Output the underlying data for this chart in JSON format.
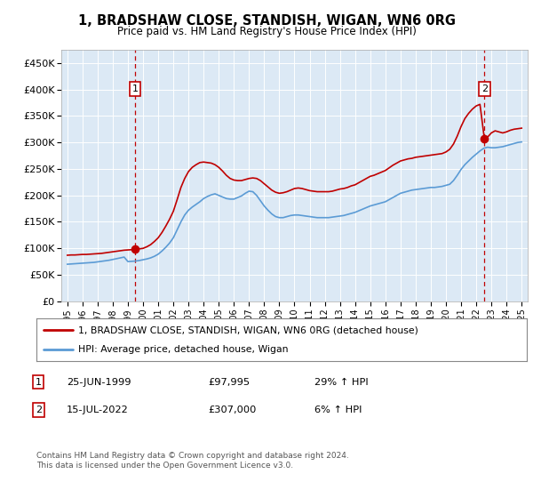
{
  "title": "1, BRADSHAW CLOSE, STANDISH, WIGAN, WN6 0RG",
  "subtitle": "Price paid vs. HM Land Registry's House Price Index (HPI)",
  "ylabel_ticks": [
    "£0",
    "£50K",
    "£100K",
    "£150K",
    "£200K",
    "£250K",
    "£300K",
    "£350K",
    "£400K",
    "£450K"
  ],
  "ylim": [
    0,
    475000
  ],
  "ytick_vals": [
    0,
    50000,
    100000,
    150000,
    200000,
    250000,
    300000,
    350000,
    400000,
    450000
  ],
  "sale1_date": 1999.48,
  "sale1_price": 97995,
  "sale2_date": 2022.54,
  "sale2_price": 307000,
  "legend_line1": "1, BRADSHAW CLOSE, STANDISH, WIGAN, WN6 0RG (detached house)",
  "legend_line2": "HPI: Average price, detached house, Wigan",
  "footnote": "Contains HM Land Registry data © Crown copyright and database right 2024.\nThis data is licensed under the Open Government Licence v3.0.",
  "bg_color": "#dce9f5",
  "line_color_hpi": "#5b9bd5",
  "line_color_price": "#c00000",
  "dashed_color": "#c00000",
  "grid_color": "#ffffff",
  "xmin": 1994.6,
  "xmax": 2025.4,
  "hpi_data": [
    [
      1995.0,
      70000
    ],
    [
      1995.25,
      70500
    ],
    [
      1995.5,
      71000
    ],
    [
      1995.75,
      71500
    ],
    [
      1996.0,
      72000
    ],
    [
      1996.25,
      72500
    ],
    [
      1996.5,
      73000
    ],
    [
      1996.75,
      73500
    ],
    [
      1997.0,
      74500
    ],
    [
      1997.25,
      75500
    ],
    [
      1997.5,
      76500
    ],
    [
      1997.75,
      77500
    ],
    [
      1998.0,
      79000
    ],
    [
      1998.25,
      80500
    ],
    [
      1998.5,
      82000
    ],
    [
      1998.75,
      83500
    ],
    [
      1999.0,
      75000
    ],
    [
      1999.25,
      75500
    ],
    [
      1999.5,
      76000
    ],
    [
      1999.75,
      77000
    ],
    [
      2000.0,
      78500
    ],
    [
      2000.25,
      80000
    ],
    [
      2000.5,
      82000
    ],
    [
      2000.75,
      85000
    ],
    [
      2001.0,
      89000
    ],
    [
      2001.25,
      95000
    ],
    [
      2001.5,
      102000
    ],
    [
      2001.75,
      110000
    ],
    [
      2002.0,
      120000
    ],
    [
      2002.25,
      135000
    ],
    [
      2002.5,
      150000
    ],
    [
      2002.75,
      163000
    ],
    [
      2003.0,
      172000
    ],
    [
      2003.25,
      178000
    ],
    [
      2003.5,
      183000
    ],
    [
      2003.75,
      188000
    ],
    [
      2004.0,
      194000
    ],
    [
      2004.25,
      198000
    ],
    [
      2004.5,
      201000
    ],
    [
      2004.75,
      203000
    ],
    [
      2005.0,
      200000
    ],
    [
      2005.25,
      197000
    ],
    [
      2005.5,
      194000
    ],
    [
      2005.75,
      193000
    ],
    [
      2006.0,
      193000
    ],
    [
      2006.25,
      196000
    ],
    [
      2006.5,
      199000
    ],
    [
      2006.75,
      204000
    ],
    [
      2007.0,
      208000
    ],
    [
      2007.25,
      207000
    ],
    [
      2007.5,
      200000
    ],
    [
      2007.75,
      190000
    ],
    [
      2008.0,
      180000
    ],
    [
      2008.25,
      172000
    ],
    [
      2008.5,
      165000
    ],
    [
      2008.75,
      160000
    ],
    [
      2009.0,
      158000
    ],
    [
      2009.25,
      158000
    ],
    [
      2009.5,
      160000
    ],
    [
      2009.75,
      162000
    ],
    [
      2010.0,
      163000
    ],
    [
      2010.25,
      163000
    ],
    [
      2010.5,
      162000
    ],
    [
      2010.75,
      161000
    ],
    [
      2011.0,
      160000
    ],
    [
      2011.25,
      159000
    ],
    [
      2011.5,
      158000
    ],
    [
      2011.75,
      158000
    ],
    [
      2012.0,
      158000
    ],
    [
      2012.25,
      158000
    ],
    [
      2012.5,
      159000
    ],
    [
      2012.75,
      160000
    ],
    [
      2013.0,
      161000
    ],
    [
      2013.25,
      162000
    ],
    [
      2013.5,
      164000
    ],
    [
      2013.75,
      166000
    ],
    [
      2014.0,
      168000
    ],
    [
      2014.25,
      171000
    ],
    [
      2014.5,
      174000
    ],
    [
      2014.75,
      177000
    ],
    [
      2015.0,
      180000
    ],
    [
      2015.25,
      182000
    ],
    [
      2015.5,
      184000
    ],
    [
      2015.75,
      186000
    ],
    [
      2016.0,
      188000
    ],
    [
      2016.25,
      192000
    ],
    [
      2016.5,
      196000
    ],
    [
      2016.75,
      200000
    ],
    [
      2017.0,
      204000
    ],
    [
      2017.25,
      206000
    ],
    [
      2017.5,
      208000
    ],
    [
      2017.75,
      210000
    ],
    [
      2018.0,
      211000
    ],
    [
      2018.25,
      212000
    ],
    [
      2018.5,
      213000
    ],
    [
      2018.75,
      214000
    ],
    [
      2019.0,
      215000
    ],
    [
      2019.25,
      215000
    ],
    [
      2019.5,
      216000
    ],
    [
      2019.75,
      217000
    ],
    [
      2020.0,
      219000
    ],
    [
      2020.25,
      221000
    ],
    [
      2020.5,
      228000
    ],
    [
      2020.75,
      238000
    ],
    [
      2021.0,
      249000
    ],
    [
      2021.25,
      258000
    ],
    [
      2021.5,
      265000
    ],
    [
      2021.75,
      272000
    ],
    [
      2022.0,
      278000
    ],
    [
      2022.25,
      284000
    ],
    [
      2022.5,
      289000
    ],
    [
      2022.75,
      291000
    ],
    [
      2023.0,
      290000
    ],
    [
      2023.25,
      290000
    ],
    [
      2023.5,
      291000
    ],
    [
      2023.75,
      292000
    ],
    [
      2024.0,
      294000
    ],
    [
      2024.25,
      296000
    ],
    [
      2024.5,
      298000
    ],
    [
      2024.75,
      300000
    ],
    [
      2025.0,
      301000
    ]
  ],
  "price_data": [
    [
      1995.0,
      87000
    ],
    [
      1995.25,
      87500
    ],
    [
      1995.5,
      87500
    ],
    [
      1995.75,
      88000
    ],
    [
      1996.0,
      88500
    ],
    [
      1996.25,
      88500
    ],
    [
      1996.5,
      89000
    ],
    [
      1996.75,
      89500
    ],
    [
      1997.0,
      90000
    ],
    [
      1997.25,
      90500
    ],
    [
      1997.5,
      91500
    ],
    [
      1997.75,
      92500
    ],
    [
      1998.0,
      93500
    ],
    [
      1998.25,
      94500
    ],
    [
      1998.5,
      95500
    ],
    [
      1998.75,
      96500
    ],
    [
      1999.0,
      97000
    ],
    [
      1999.48,
      97995
    ],
    [
      1999.6,
      98500
    ],
    [
      2000.0,
      100000
    ],
    [
      2000.25,
      103000
    ],
    [
      2000.5,
      107000
    ],
    [
      2000.75,
      113000
    ],
    [
      2001.0,
      120000
    ],
    [
      2001.25,
      130000
    ],
    [
      2001.5,
      142000
    ],
    [
      2001.75,
      155000
    ],
    [
      2002.0,
      170000
    ],
    [
      2002.25,
      192000
    ],
    [
      2002.5,
      215000
    ],
    [
      2002.75,
      232000
    ],
    [
      2003.0,
      245000
    ],
    [
      2003.25,
      253000
    ],
    [
      2003.5,
      258000
    ],
    [
      2003.75,
      262000
    ],
    [
      2004.0,
      263000
    ],
    [
      2004.25,
      262000
    ],
    [
      2004.5,
      261000
    ],
    [
      2004.75,
      258000
    ],
    [
      2005.0,
      253000
    ],
    [
      2005.25,
      246000
    ],
    [
      2005.5,
      238000
    ],
    [
      2005.75,
      232000
    ],
    [
      2006.0,
      229000
    ],
    [
      2006.25,
      228000
    ],
    [
      2006.5,
      228000
    ],
    [
      2006.75,
      230000
    ],
    [
      2007.0,
      232000
    ],
    [
      2007.25,
      233000
    ],
    [
      2007.5,
      232000
    ],
    [
      2007.75,
      228000
    ],
    [
      2008.0,
      222000
    ],
    [
      2008.25,
      216000
    ],
    [
      2008.5,
      210000
    ],
    [
      2008.75,
      206000
    ],
    [
      2009.0,
      204000
    ],
    [
      2009.25,
      205000
    ],
    [
      2009.5,
      207000
    ],
    [
      2009.75,
      210000
    ],
    [
      2010.0,
      213000
    ],
    [
      2010.25,
      214000
    ],
    [
      2010.5,
      213000
    ],
    [
      2010.75,
      211000
    ],
    [
      2011.0,
      209000
    ],
    [
      2011.25,
      208000
    ],
    [
      2011.5,
      207000
    ],
    [
      2011.75,
      207000
    ],
    [
      2012.0,
      207000
    ],
    [
      2012.25,
      207000
    ],
    [
      2012.5,
      208000
    ],
    [
      2012.75,
      210000
    ],
    [
      2013.0,
      212000
    ],
    [
      2013.25,
      213000
    ],
    [
      2013.5,
      215000
    ],
    [
      2013.75,
      218000
    ],
    [
      2014.0,
      220000
    ],
    [
      2014.25,
      224000
    ],
    [
      2014.5,
      228000
    ],
    [
      2014.75,
      232000
    ],
    [
      2015.0,
      236000
    ],
    [
      2015.25,
      238000
    ],
    [
      2015.5,
      241000
    ],
    [
      2015.75,
      244000
    ],
    [
      2016.0,
      247000
    ],
    [
      2016.25,
      252000
    ],
    [
      2016.5,
      257000
    ],
    [
      2016.75,
      261000
    ],
    [
      2017.0,
      265000
    ],
    [
      2017.25,
      267000
    ],
    [
      2017.5,
      269000
    ],
    [
      2017.75,
      270000
    ],
    [
      2018.0,
      272000
    ],
    [
      2018.25,
      273000
    ],
    [
      2018.5,
      274000
    ],
    [
      2018.75,
      275000
    ],
    [
      2019.0,
      276000
    ],
    [
      2019.25,
      277000
    ],
    [
      2019.5,
      278000
    ],
    [
      2019.75,
      279000
    ],
    [
      2020.0,
      282000
    ],
    [
      2020.25,
      287000
    ],
    [
      2020.5,
      297000
    ],
    [
      2020.75,
      312000
    ],
    [
      2021.0,
      330000
    ],
    [
      2021.25,
      345000
    ],
    [
      2021.5,
      355000
    ],
    [
      2021.75,
      363000
    ],
    [
      2022.0,
      369000
    ],
    [
      2022.25,
      372000
    ],
    [
      2022.54,
      307000
    ],
    [
      2022.75,
      310000
    ],
    [
      2023.0,
      318000
    ],
    [
      2023.25,
      322000
    ],
    [
      2023.5,
      320000
    ],
    [
      2023.75,
      318000
    ],
    [
      2024.0,
      320000
    ],
    [
      2024.25,
      323000
    ],
    [
      2024.5,
      325000
    ],
    [
      2024.75,
      326000
    ],
    [
      2025.0,
      327000
    ]
  ]
}
